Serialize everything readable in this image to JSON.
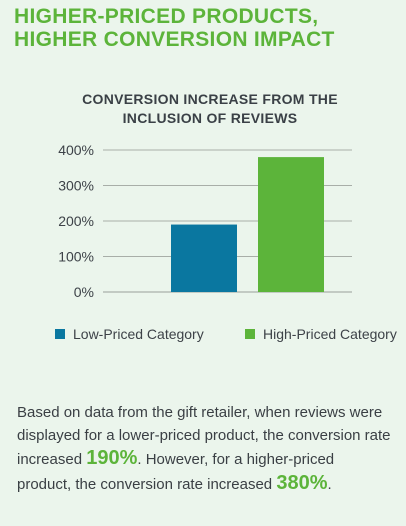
{
  "headline": "HIGHER-PRICED PRODUCTS, HIGHER CONVERSION IMPACT",
  "chart_data": {
    "type": "bar",
    "title": "CONVERSION INCREASE FROM THE INCLUSION OF REVIEWS",
    "categories": [
      "Low-Priced Category",
      "High-Priced Category"
    ],
    "values": [
      190,
      380
    ],
    "colors": [
      "#0a77a0",
      "#5cb43a"
    ],
    "ylim": [
      0,
      400
    ],
    "yticks": [
      0,
      100,
      200,
      300,
      400
    ],
    "ytick_labels": [
      "0%",
      "100%",
      "200%",
      "300%",
      "400%"
    ],
    "grid": true,
    "legend_position": "bottom"
  },
  "body": {
    "part1": "Based on data from the gift retailer, when reviews were displayed for a lower-priced product, the conversion rate increased ",
    "highlight1": "190%",
    "part2": ". However, for a higher-priced product, the conversion rate increased ",
    "highlight2": "380%",
    "part3": "."
  }
}
